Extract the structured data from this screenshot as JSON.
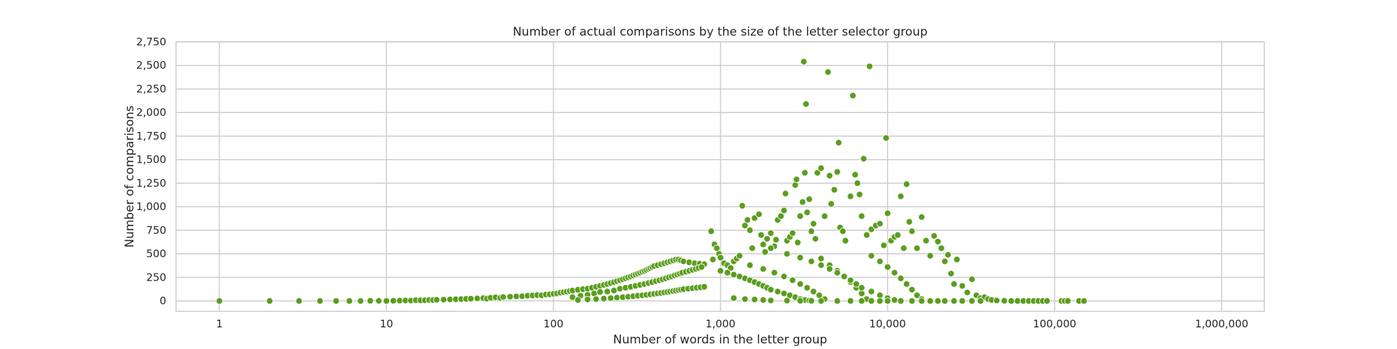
{
  "chart_data": {
    "type": "scatter",
    "title": "Number of actual comparisons by the size of the letter selector group",
    "xlabel": "Number of words in the letter group",
    "ylabel": "Number of comparisons",
    "x_scale": "log",
    "xlim": [
      0.55,
      1800000
    ],
    "ylim": [
      -110,
      2750
    ],
    "x_ticks": [
      1,
      10,
      100,
      1000,
      10000,
      100000,
      1000000
    ],
    "x_tick_labels": [
      "1",
      "10",
      "100",
      "1,000",
      "10,000",
      "100,000",
      "1,000,000"
    ],
    "y_ticks": [
      0,
      250,
      500,
      750,
      1000,
      1250,
      1500,
      1750,
      2000,
      2250,
      2500,
      2750
    ],
    "y_tick_labels": [
      "0",
      "250",
      "500",
      "750",
      "1,000",
      "1,250",
      "1,500",
      "1,750",
      "2,000",
      "2,250",
      "2,500",
      "2,750"
    ],
    "grid": true,
    "marker_color": "#5a9e1e",
    "marker_edge": "#ffffff",
    "points": [
      [
        1,
        0
      ],
      [
        2,
        0
      ],
      [
        3,
        0
      ],
      [
        4,
        0
      ],
      [
        5,
        0
      ],
      [
        6,
        0
      ],
      [
        7,
        0
      ],
      [
        8,
        2
      ],
      [
        9,
        1
      ],
      [
        10,
        0
      ],
      [
        11,
        2
      ],
      [
        12,
        3
      ],
      [
        13,
        5
      ],
      [
        14,
        4
      ],
      [
        15,
        8
      ],
      [
        16,
        6
      ],
      [
        17,
        7
      ],
      [
        18,
        10
      ],
      [
        19,
        9
      ],
      [
        20,
        12
      ],
      [
        22,
        14
      ],
      [
        24,
        16
      ],
      [
        26,
        18
      ],
      [
        28,
        20
      ],
      [
        30,
        22
      ],
      [
        32,
        24
      ],
      [
        35,
        27
      ],
      [
        38,
        30
      ],
      [
        40,
        25
      ],
      [
        42,
        34
      ],
      [
        45,
        38
      ],
      [
        48,
        32
      ],
      [
        50,
        42
      ],
      [
        55,
        45
      ],
      [
        60,
        48
      ],
      [
        65,
        50
      ],
      [
        70,
        55
      ],
      [
        75,
        58
      ],
      [
        80,
        62
      ],
      [
        85,
        60
      ],
      [
        90,
        68
      ],
      [
        95,
        70
      ],
      [
        100,
        75
      ],
      [
        105,
        80
      ],
      [
        110,
        88
      ],
      [
        115,
        92
      ],
      [
        120,
        98
      ],
      [
        125,
        105
      ],
      [
        130,
        110
      ],
      [
        140,
        118
      ],
      [
        150,
        125
      ],
      [
        160,
        130
      ],
      [
        170,
        140
      ],
      [
        180,
        150
      ],
      [
        190,
        160
      ],
      [
        200,
        170
      ],
      [
        210,
        180
      ],
      [
        220,
        190
      ],
      [
        230,
        200
      ],
      [
        240,
        210
      ],
      [
        250,
        220
      ],
      [
        260,
        230
      ],
      [
        270,
        240
      ],
      [
        280,
        250
      ],
      [
        290,
        260
      ],
      [
        300,
        270
      ],
      [
        310,
        280
      ],
      [
        320,
        290
      ],
      [
        330,
        300
      ],
      [
        340,
        310
      ],
      [
        350,
        320
      ],
      [
        360,
        330
      ],
      [
        370,
        340
      ],
      [
        380,
        350
      ],
      [
        390,
        360
      ],
      [
        400,
        370
      ],
      [
        420,
        380
      ],
      [
        440,
        390
      ],
      [
        460,
        400
      ],
      [
        480,
        410
      ],
      [
        500,
        420
      ],
      [
        520,
        430
      ],
      [
        540,
        440
      ],
      [
        560,
        440
      ],
      [
        580,
        430
      ],
      [
        600,
        420
      ],
      [
        650,
        410
      ],
      [
        700,
        400
      ],
      [
        750,
        395
      ],
      [
        800,
        390
      ],
      [
        130,
        40
      ],
      [
        145,
        55
      ],
      [
        160,
        65
      ],
      [
        175,
        80
      ],
      [
        190,
        95
      ],
      [
        210,
        100
      ],
      [
        230,
        110
      ],
      [
        250,
        130
      ],
      [
        270,
        140
      ],
      [
        290,
        150
      ],
      [
        310,
        160
      ],
      [
        330,
        170
      ],
      [
        350,
        180
      ],
      [
        370,
        190
      ],
      [
        390,
        200
      ],
      [
        410,
        210
      ],
      [
        430,
        220
      ],
      [
        450,
        230
      ],
      [
        470,
        240
      ],
      [
        490,
        250
      ],
      [
        510,
        260
      ],
      [
        530,
        270
      ],
      [
        550,
        280
      ],
      [
        570,
        290
      ],
      [
        590,
        300
      ],
      [
        620,
        310
      ],
      [
        650,
        320
      ],
      [
        680,
        330
      ],
      [
        710,
        340
      ],
      [
        740,
        350
      ],
      [
        770,
        360
      ],
      [
        140,
        10
      ],
      [
        160,
        15
      ],
      [
        180,
        20
      ],
      [
        200,
        25
      ],
      [
        220,
        30
      ],
      [
        240,
        35
      ],
      [
        260,
        40
      ],
      [
        280,
        45
      ],
      [
        300,
        50
      ],
      [
        320,
        55
      ],
      [
        340,
        60
      ],
      [
        360,
        65
      ],
      [
        380,
        70
      ],
      [
        400,
        75
      ],
      [
        420,
        80
      ],
      [
        440,
        85
      ],
      [
        460,
        90
      ],
      [
        480,
        95
      ],
      [
        500,
        100
      ],
      [
        520,
        105
      ],
      [
        540,
        110
      ],
      [
        560,
        115
      ],
      [
        580,
        120
      ],
      [
        600,
        125
      ],
      [
        640,
        130
      ],
      [
        680,
        135
      ],
      [
        720,
        140
      ],
      [
        760,
        145
      ],
      [
        800,
        150
      ],
      [
        880,
        740
      ],
      [
        900,
        440
      ],
      [
        920,
        600
      ],
      [
        950,
        560
      ],
      [
        980,
        500
      ],
      [
        1000,
        460
      ],
      [
        1050,
        400
      ],
      [
        1100,
        380
      ],
      [
        1150,
        350
      ],
      [
        1200,
        420
      ],
      [
        1250,
        450
      ],
      [
        1300,
        480
      ],
      [
        1350,
        1010
      ],
      [
        1400,
        800
      ],
      [
        1450,
        860
      ],
      [
        1500,
        750
      ],
      [
        1550,
        560
      ],
      [
        1600,
        880
      ],
      [
        1700,
        920
      ],
      [
        1750,
        700
      ],
      [
        1800,
        600
      ],
      [
        1850,
        520
      ],
      [
        1900,
        660
      ],
      [
        2000,
        720
      ],
      [
        2100,
        580
      ],
      [
        2150,
        650
      ],
      [
        2200,
        860
      ],
      [
        2300,
        900
      ],
      [
        2400,
        960
      ],
      [
        2450,
        1140
      ],
      [
        2500,
        640
      ],
      [
        2600,
        680
      ],
      [
        2700,
        720
      ],
      [
        2800,
        1230
      ],
      [
        2850,
        1290
      ],
      [
        2900,
        620
      ],
      [
        3000,
        900
      ],
      [
        3100,
        1050
      ],
      [
        3150,
        2540
      ],
      [
        3200,
        1360
      ],
      [
        3250,
        2090
      ],
      [
        3300,
        940
      ],
      [
        3400,
        1080
      ],
      [
        3500,
        740
      ],
      [
        3600,
        820
      ],
      [
        3700,
        660
      ],
      [
        3800,
        1360
      ],
      [
        4000,
        1410
      ],
      [
        4200,
        900
      ],
      [
        4400,
        2430
      ],
      [
        4500,
        1330
      ],
      [
        4600,
        1030
      ],
      [
        4800,
        1180
      ],
      [
        5000,
        1370
      ],
      [
        5100,
        1680
      ],
      [
        5200,
        780
      ],
      [
        5400,
        740
      ],
      [
        5600,
        640
      ],
      [
        6000,
        1110
      ],
      [
        6200,
        2180
      ],
      [
        6400,
        1340
      ],
      [
        6600,
        1250
      ],
      [
        6800,
        1130
      ],
      [
        7000,
        900
      ],
      [
        7200,
        1510
      ],
      [
        7500,
        700
      ],
      [
        7800,
        2490
      ],
      [
        8000,
        760
      ],
      [
        8500,
        800
      ],
      [
        9000,
        820
      ],
      [
        9500,
        590
      ],
      [
        9800,
        1730
      ],
      [
        10000,
        930
      ],
      [
        10500,
        640
      ],
      [
        11000,
        680
      ],
      [
        11500,
        700
      ],
      [
        12000,
        1110
      ],
      [
        12500,
        560
      ],
      [
        13000,
        1240
      ],
      [
        13500,
        840
      ],
      [
        14000,
        740
      ],
      [
        15000,
        560
      ],
      [
        16000,
        890
      ],
      [
        17000,
        640
      ],
      [
        18000,
        480
      ],
      [
        19000,
        690
      ],
      [
        20000,
        630
      ],
      [
        21000,
        560
      ],
      [
        22000,
        420
      ],
      [
        23000,
        490
      ],
      [
        24000,
        290
      ],
      [
        25000,
        180
      ],
      [
        26000,
        440
      ],
      [
        28000,
        160
      ],
      [
        30000,
        90
      ],
      [
        32000,
        230
      ],
      [
        34000,
        60
      ],
      [
        36000,
        30
      ],
      [
        38000,
        40
      ],
      [
        40000,
        20
      ],
      [
        42000,
        10
      ],
      [
        45000,
        5
      ],
      [
        50000,
        2
      ],
      [
        55000,
        0
      ],
      [
        60000,
        0
      ],
      [
        65000,
        0
      ],
      [
        70000,
        0
      ],
      [
        75000,
        0
      ],
      [
        80000,
        0
      ],
      [
        85000,
        0
      ],
      [
        90000,
        0
      ],
      [
        110000,
        0
      ],
      [
        115000,
        0
      ],
      [
        120000,
        0
      ],
      [
        140000,
        0
      ],
      [
        150000,
        0
      ],
      [
        1000,
        320
      ],
      [
        1100,
        300
      ],
      [
        1200,
        280
      ],
      [
        1300,
        260
      ],
      [
        1400,
        240
      ],
      [
        1500,
        220
      ],
      [
        1600,
        200
      ],
      [
        1700,
        180
      ],
      [
        1800,
        160
      ],
      [
        1900,
        140
      ],
      [
        2000,
        120
      ],
      [
        2200,
        100
      ],
      [
        2400,
        80
      ],
      [
        2600,
        60
      ],
      [
        2800,
        40
      ],
      [
        3000,
        20
      ],
      [
        3200,
        10
      ],
      [
        3400,
        5
      ],
      [
        1500,
        380
      ],
      [
        1800,
        340
      ],
      [
        2100,
        300
      ],
      [
        2400,
        260
      ],
      [
        2700,
        220
      ],
      [
        3000,
        180
      ],
      [
        3300,
        140
      ],
      [
        3600,
        100
      ],
      [
        3900,
        60
      ],
      [
        4200,
        20
      ],
      [
        4000,
        450
      ],
      [
        4500,
        380
      ],
      [
        5000,
        320
      ],
      [
        5500,
        260
      ],
      [
        6000,
        200
      ],
      [
        6500,
        140
      ],
      [
        7000,
        80
      ],
      [
        7500,
        20
      ],
      [
        8000,
        480
      ],
      [
        9000,
        420
      ],
      [
        10000,
        360
      ],
      [
        11000,
        300
      ],
      [
        12000,
        240
      ],
      [
        13000,
        180
      ],
      [
        14000,
        120
      ],
      [
        15000,
        60
      ],
      [
        16000,
        20
      ],
      [
        2000,
        560
      ],
      [
        2500,
        500
      ],
      [
        3000,
        460
      ],
      [
        3500,
        420
      ],
      [
        4000,
        380
      ],
      [
        4500,
        340
      ],
      [
        5000,
        300
      ],
      [
        5500,
        260
      ],
      [
        6000,
        220
      ],
      [
        6500,
        180
      ],
      [
        7000,
        140
      ],
      [
        8000,
        100
      ],
      [
        9000,
        60
      ],
      [
        10000,
        30
      ],
      [
        11000,
        10
      ],
      [
        1200,
        30
      ],
      [
        1400,
        20
      ],
      [
        1600,
        15
      ],
      [
        1800,
        10
      ],
      [
        2000,
        5
      ],
      [
        2500,
        3
      ],
      [
        3000,
        2
      ],
      [
        3500,
        1
      ],
      [
        4000,
        0
      ],
      [
        5000,
        0
      ],
      [
        6000,
        0
      ],
      [
        7000,
        0
      ],
      [
        8000,
        0
      ],
      [
        9000,
        0
      ],
      [
        10000,
        0
      ],
      [
        12000,
        0
      ],
      [
        14000,
        0
      ],
      [
        16000,
        0
      ],
      [
        18000,
        0
      ],
      [
        20000,
        0
      ],
      [
        22000,
        0
      ],
      [
        25000,
        0
      ],
      [
        28000,
        0
      ],
      [
        32000,
        0
      ],
      [
        36000,
        0
      ]
    ]
  }
}
